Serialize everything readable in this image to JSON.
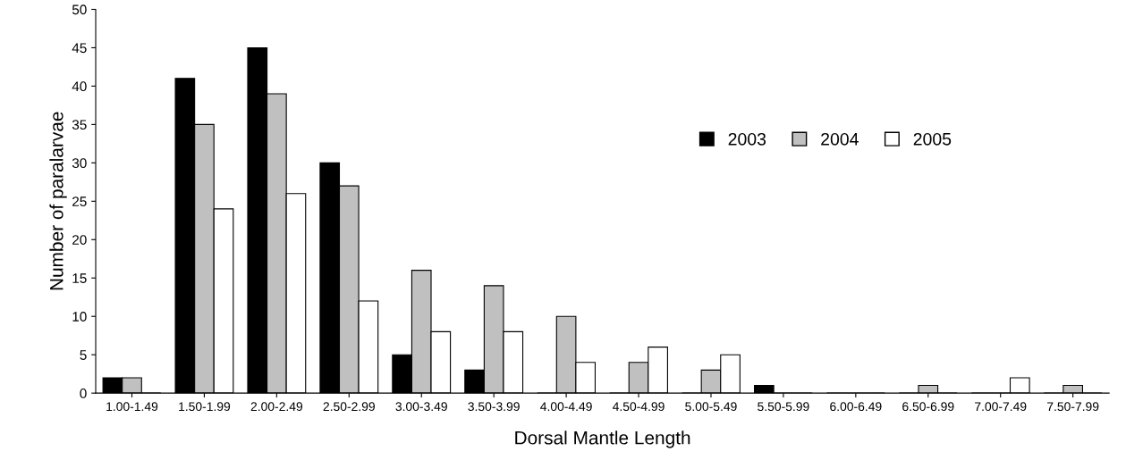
{
  "chart_data": {
    "type": "bar",
    "xlabel": "Dorsal Mantle Length",
    "ylabel": "Number of paralarvae",
    "categories": [
      "1.00-1.49",
      "1.50-1.99",
      "2.00-2.49",
      "2.50-2.99",
      "3.00-3.49",
      "3.50-3.99",
      "4.00-4.49",
      "4.50-4.99",
      "5.00-5.49",
      "5.50-5.99",
      "6.00-6.49",
      "6.50-6.99",
      "7.00-7.49",
      "7.50-7.99"
    ],
    "series": [
      {
        "name": "2003",
        "color": "#000000",
        "values": [
          2,
          41,
          45,
          30,
          5,
          3,
          0,
          0,
          0,
          1,
          0,
          0,
          0,
          0
        ]
      },
      {
        "name": "2004",
        "color": "#c0c0c0",
        "values": [
          2,
          35,
          39,
          27,
          16,
          14,
          10,
          4,
          3,
          0,
          0,
          1,
          0,
          1
        ]
      },
      {
        "name": "2005",
        "color": "#ffffff",
        "values": [
          0,
          24,
          26,
          12,
          8,
          8,
          4,
          6,
          5,
          0,
          0,
          0,
          2,
          0
        ]
      }
    ],
    "ylim": [
      0,
      50
    ],
    "yticks": [
      0,
      5,
      10,
      15,
      20,
      25,
      30,
      35,
      40,
      45,
      50
    ],
    "grid": false,
    "legend": "top right"
  }
}
